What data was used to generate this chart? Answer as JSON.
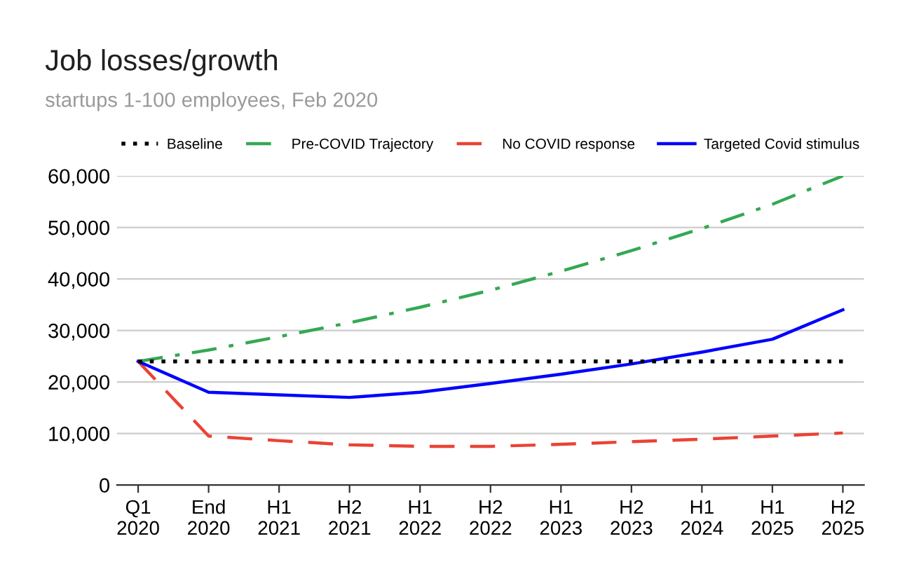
{
  "chart_data": {
    "type": "line",
    "title": "Job losses/growth",
    "subtitle": "startups 1-100 employees, Feb 2020",
    "categories": [
      "Q1\n2020",
      "End\n2020",
      "H1\n2021",
      "H2\n2021",
      "H1\n2022",
      "H2\n2022",
      "H1\n2023",
      "H2\n2023",
      "H1\n2024",
      "H1\n2025",
      "H2\n2025"
    ],
    "series": [
      {
        "name": "Baseline",
        "color": "#000000",
        "line_style": "dotted",
        "values": [
          24000,
          24000,
          24000,
          24000,
          24000,
          24000,
          24000,
          24000,
          24000,
          24000,
          24000
        ]
      },
      {
        "name": "Pre-COVID Trajectory",
        "color": "#34a853",
        "line_style": "dashdot",
        "values": [
          24000,
          26200,
          28800,
          31500,
          34500,
          37800,
          41500,
          45500,
          49800,
          54500,
          60000
        ]
      },
      {
        "name": "No COVID response",
        "color": "#ea4335",
        "line_style": "dashed",
        "values": [
          24000,
          9500,
          8600,
          7800,
          7500,
          7500,
          7900,
          8400,
          8900,
          9500,
          10100
        ]
      },
      {
        "name": "Targeted Covid stimulus",
        "color": "#0000ff",
        "line_style": "solid",
        "values": [
          24000,
          18000,
          17500,
          17000,
          18000,
          19700,
          21500,
          23500,
          25800,
          28300,
          34000
        ]
      }
    ],
    "ylim": [
      0,
      60000
    ],
    "yticks": [
      {
        "value": 0,
        "label": "0"
      },
      {
        "value": 10000,
        "label": "10,000"
      },
      {
        "value": 20000,
        "label": "20,000"
      },
      {
        "value": 30000,
        "label": "30,000"
      },
      {
        "value": 40000,
        "label": "40,000"
      },
      {
        "value": 50000,
        "label": "50,000"
      },
      {
        "value": 60000,
        "label": "60,000"
      }
    ],
    "grid": "y",
    "legend": "top",
    "marker": "none"
  }
}
